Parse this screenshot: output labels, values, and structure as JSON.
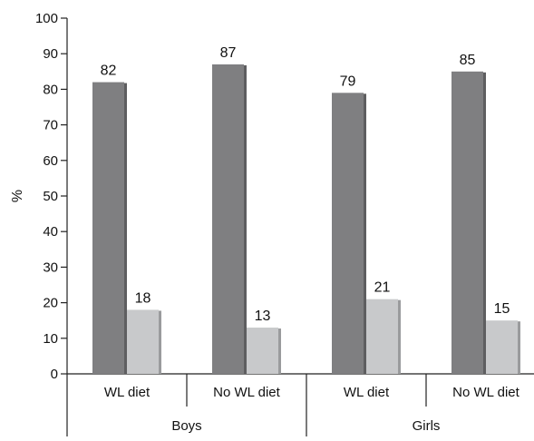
{
  "chart_data": {
    "type": "bar",
    "groups": [
      "Boys",
      "Girls"
    ],
    "categories": [
      "WL diet",
      "No WL diet",
      "WL diet",
      "No WL diet"
    ],
    "category_group_index": [
      0,
      0,
      1,
      1
    ],
    "series": [
      {
        "values": [
          82,
          87,
          79,
          85
        ]
      },
      {
        "values": [
          18,
          13,
          21,
          15
        ]
      }
    ],
    "data_labels": [
      [
        "82",
        "87",
        "79",
        "85"
      ],
      [
        "18",
        "13",
        "21",
        "15"
      ]
    ],
    "yticks": [
      0,
      10,
      20,
      30,
      40,
      50,
      60,
      70,
      80,
      90,
      100
    ],
    "ytick_labels": [
      "0",
      "10",
      "20",
      "30",
      "40",
      "50",
      "60",
      "70",
      "80",
      "90",
      "100"
    ],
    "ylim": [
      0,
      100
    ],
    "ylabel": "%",
    "title": "",
    "xlabel": "",
    "grid": false,
    "legend": "none",
    "colors": {
      "series_0": "#7f7f81",
      "series_0_shadow": "#5e5e60",
      "series_1": "#c8c9cb",
      "series_1_shadow": "#9a9b9d",
      "axis": "#222222"
    }
  }
}
